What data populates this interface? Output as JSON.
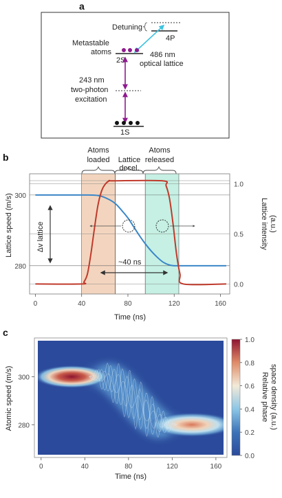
{
  "panels": {
    "a": {
      "label": "a",
      "detuning_label": "Detuning",
      "state_4p": "4P",
      "metastable_label_line1": "Metastable",
      "metastable_label_line2": "atoms",
      "state_2s": "2S",
      "lattice_label_line1": "486 nm",
      "lattice_label_line2": "optical lattice",
      "excitation_line1": "243 nm",
      "excitation_line2": "two-photon",
      "excitation_line3": "excitation",
      "state_1s": "1S"
    },
    "b": {
      "label": "b",
      "phase_labels": [
        [
          "Atoms",
          "loaded"
        ],
        [
          "Lattice",
          "decel."
        ],
        [
          "Atoms",
          "released"
        ]
      ],
      "ylabel_left": "Lattice speed (m/s)",
      "ylabel_right_line1": "Lattice intensity",
      "ylabel_right_line2": "(a.u.)",
      "xlabel": "Time (ns)",
      "delta_v_label": "Δv lattice",
      "duration_label": "~40 ns"
    },
    "c": {
      "label": "c",
      "ylabel": "Atomic speed (m/s)",
      "xlabel": "Time (ns)",
      "colorbar_label_line1": "Relative phase",
      "colorbar_label_line2": "space density (a.u.)",
      "colorbar_ticks": [
        "0.0",
        "0.2",
        "0.4",
        "0.6",
        "0.8",
        "1.0"
      ]
    }
  },
  "colors": {
    "speed_curve": "#3a86c8",
    "intensity_curve": "#c0392b",
    "load_region": "#f3d5bf",
    "release_region": "#c5f0e3",
    "transition_arrow": "#8e1a8e",
    "lattice_arrow": "#3ec3e0",
    "heatmap_low": "#2b4a9b",
    "heatmap_high": "#8e1530"
  },
  "chart_data": [
    {
      "type": "line",
      "panel": "b",
      "xlabel": "Time (ns)",
      "ylabel": "Lattice speed (m/s)",
      "y2label": "Lattice intensity (a.u.)",
      "xlim": [
        -5,
        168
      ],
      "xticks": [
        0,
        40,
        80,
        120,
        160
      ],
      "ylim": [
        272,
        306
      ],
      "yticks": [
        280,
        300
      ],
      "y2ticks": [
        0.0,
        0.5,
        1.0
      ],
      "y2lim": [
        -0.1,
        1.1
      ],
      "regions": [
        {
          "name": "Atoms loaded",
          "x": [
            40,
            69
          ]
        },
        {
          "name": "Lattice decel.",
          "x": [
            69,
            95
          ]
        },
        {
          "name": "Atoms released",
          "x": [
            95,
            124
          ]
        }
      ],
      "series": [
        {
          "axis": "left",
          "x": [
            0,
            40,
            55,
            65,
            70,
            75,
            80,
            85,
            90,
            95,
            100,
            105,
            110,
            115,
            120,
            130,
            140,
            165
          ],
          "values": [
            300,
            300,
            299.8,
            298.5,
            297.3,
            295.5,
            293.5,
            291.0,
            288.5,
            286.2,
            284.2,
            282.5,
            281.1,
            280.3,
            280.0,
            280,
            280,
            280
          ]
        },
        {
          "axis": "right",
          "x": [
            0,
            40,
            42,
            45,
            48,
            51,
            54,
            57,
            60,
            64,
            68,
            110,
            113,
            116,
            119,
            122,
            125,
            128,
            165
          ],
          "values": [
            0.0,
            0.0,
            0.02,
            0.1,
            0.3,
            0.55,
            0.78,
            0.92,
            0.99,
            1.03,
            1.03,
            1.03,
            0.98,
            0.85,
            0.6,
            0.3,
            0.1,
            0.0,
            0.0
          ]
        }
      ]
    },
    {
      "type": "heatmap",
      "panel": "c",
      "xlabel": "Time (ns)",
      "ylabel": "Atomic speed (m/s)",
      "xlim": [
        -3,
        167
      ],
      "xticks": [
        0,
        40,
        80,
        120,
        160
      ],
      "ylim": [
        267.5,
        315
      ],
      "yticks": [
        280,
        300
      ],
      "colorbar": {
        "range": [
          0.0,
          1.0
        ],
        "ticks": [
          0.0,
          0.2,
          0.4,
          0.6,
          0.8,
          1.0
        ]
      },
      "blobs": [
        {
          "t_center": 28,
          "v_center": 300,
          "t_halfwidth": 23,
          "v_sigma": 1.5,
          "peak": 1.0
        },
        {
          "t_center": 138,
          "v_center": 280,
          "t_halfwidth": 28,
          "v_sigma": 1.6,
          "peak": 0.6
        }
      ],
      "transition": {
        "t_start": 50,
        "t_end": 120,
        "v_start": 300,
        "v_end": 280,
        "peak": 0.35
      }
    }
  ]
}
